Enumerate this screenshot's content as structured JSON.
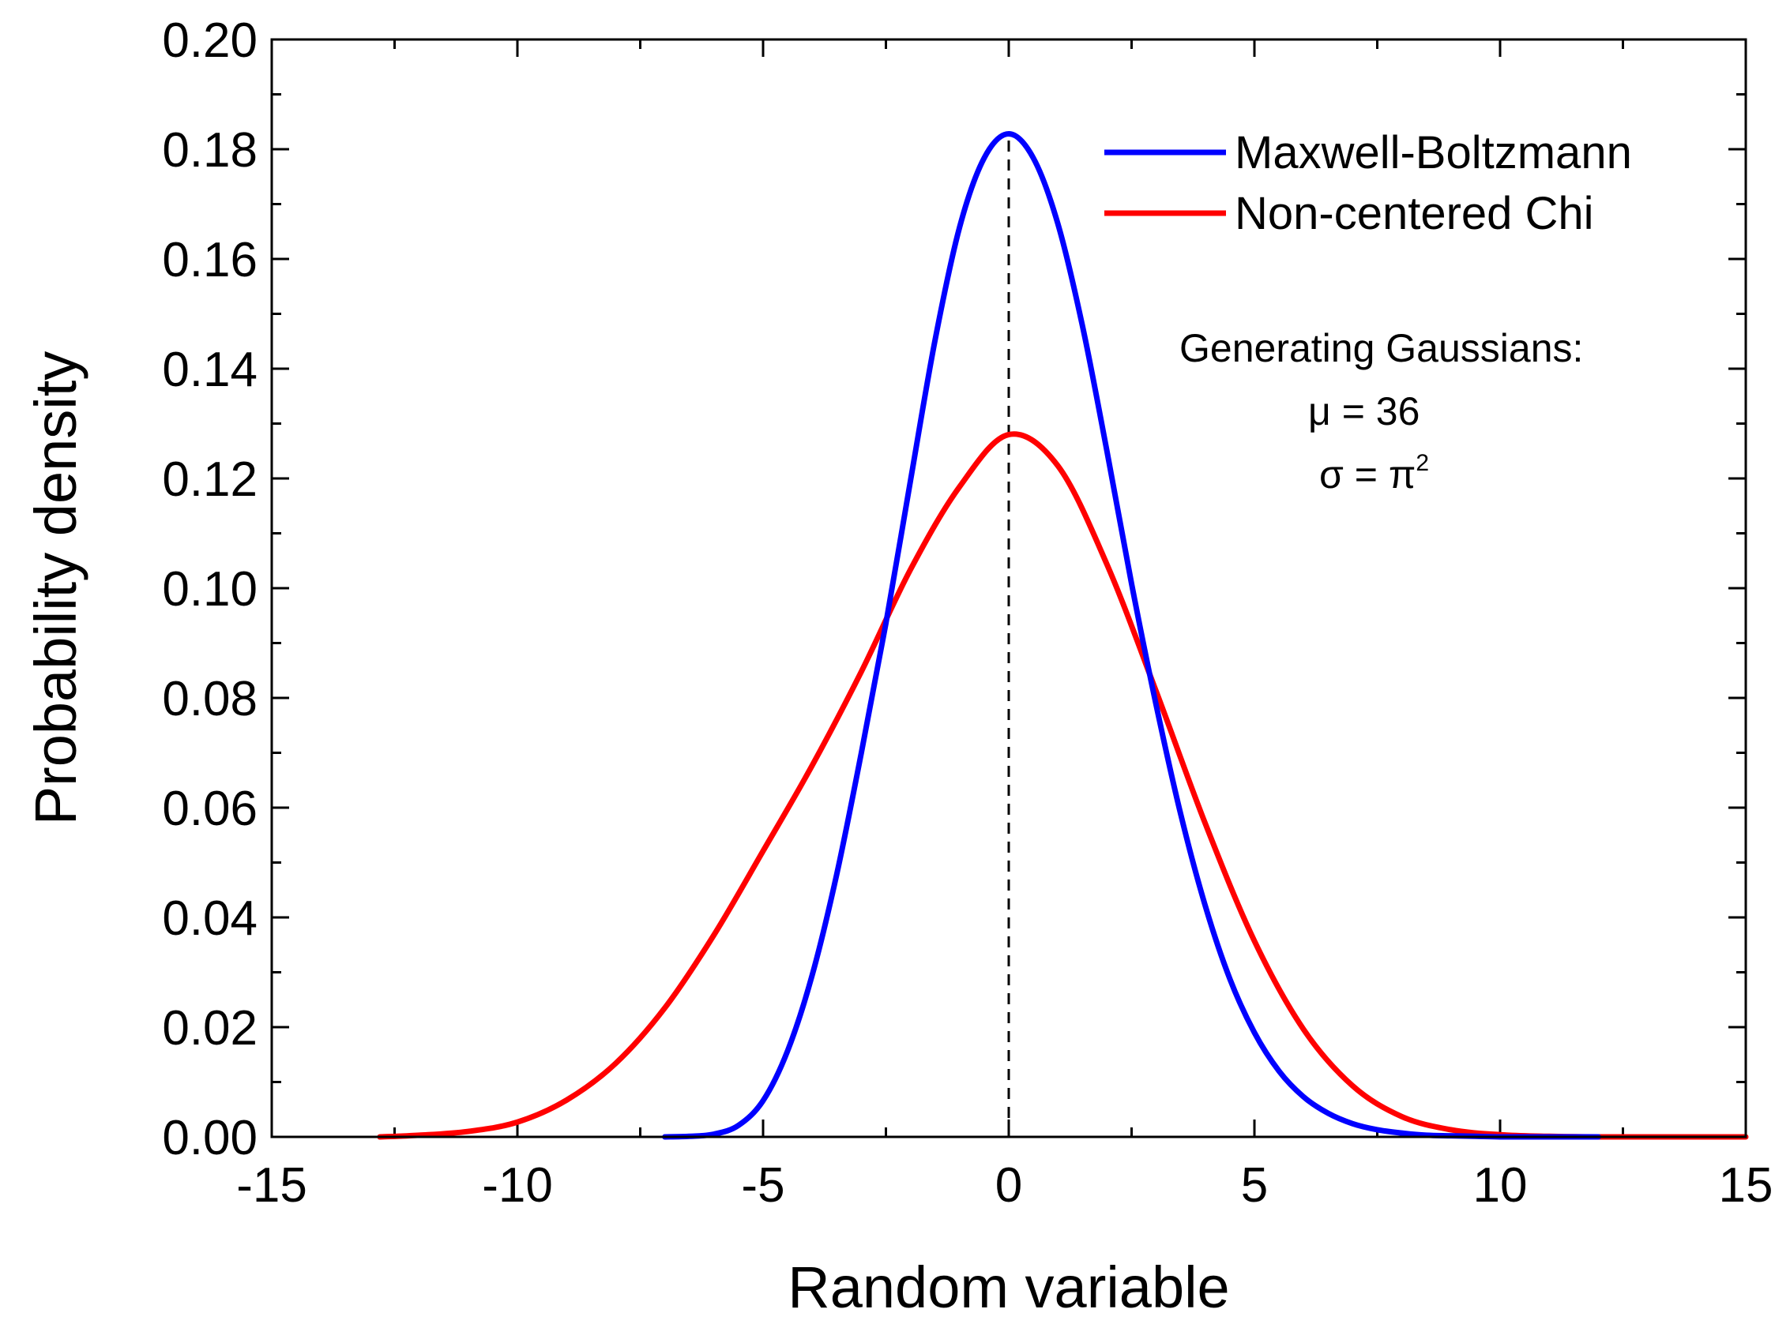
{
  "chart_data": {
    "type": "line",
    "title": "",
    "xlabel": "Random variable",
    "ylabel": "Probability density",
    "xlim": [
      -15,
      15
    ],
    "ylim": [
      0,
      0.2
    ],
    "x_ticks": [
      -15,
      -10,
      -5,
      0,
      5,
      10,
      15
    ],
    "x_tick_labels": [
      "-15",
      "-10",
      "-5",
      "0",
      "5",
      "10",
      "15"
    ],
    "y_ticks": [
      0,
      0.02,
      0.04,
      0.06,
      0.08,
      0.1,
      0.12,
      0.14,
      0.16,
      0.18,
      0.2
    ],
    "y_tick_labels": [
      "0.00",
      "0.02",
      "0.04",
      "0.06",
      "0.08",
      "0.10",
      "0.12",
      "0.14",
      "0.16",
      "0.18",
      "0.20"
    ],
    "grid": false,
    "legend_position": "top-right",
    "series": [
      {
        "name": "Maxwell-Boltzmann",
        "color": "#0000ff",
        "x": [
          -7,
          -6.5,
          -6,
          -5.5,
          -5,
          -4.5,
          -4,
          -3.5,
          -3,
          -2.5,
          -2,
          -1.5,
          -1,
          -0.5,
          0,
          0.5,
          1,
          1.5,
          2,
          2.5,
          3,
          3.5,
          4,
          4.5,
          5,
          5.5,
          6,
          6.5,
          7,
          7.5,
          8,
          8.5,
          9,
          9.5,
          10,
          10.5,
          11,
          11.5,
          12
        ],
        "y": [
          0,
          0.0001,
          0.0005,
          0.0021,
          0.0066,
          0.0157,
          0.0295,
          0.0479,
          0.07,
          0.0936,
          0.1196,
          0.1452,
          0.1658,
          0.1784,
          0.1828,
          0.1784,
          0.1664,
          0.1478,
          0.1249,
          0.1008,
          0.0787,
          0.0588,
          0.0421,
          0.0288,
          0.019,
          0.012,
          0.0073,
          0.0043,
          0.0024,
          0.0013,
          0.0007,
          0.0003,
          0.0002,
          0.0001,
          0,
          0,
          0,
          0,
          0
        ]
      },
      {
        "name": "Non-centered Chi",
        "color": "#ff0000",
        "x": [
          -12.8,
          -12,
          -11,
          -10,
          -9,
          -8,
          -7,
          -6,
          -5,
          -4,
          -3,
          -2,
          -1,
          0,
          1,
          2,
          3,
          4,
          5,
          6,
          7,
          8,
          9,
          10,
          11,
          12,
          13,
          14,
          15
        ],
        "y": [
          0,
          0.0003,
          0.001,
          0.0027,
          0.0067,
          0.0134,
          0.0235,
          0.0368,
          0.0521,
          0.0677,
          0.0848,
          0.1034,
          0.1185,
          0.128,
          0.1223,
          0.1043,
          0.0812,
          0.0571,
          0.0357,
          0.0196,
          0.0093,
          0.0037,
          0.0013,
          0.0004,
          0.0001,
          0,
          0,
          0,
          0
        ]
      }
    ],
    "reference_line": {
      "x": 0,
      "style": "dashed",
      "color": "#000000"
    },
    "annotation": {
      "title": "Generating Gaussians:",
      "mu_line": "μ = 36",
      "sigma_prefix": "σ = π",
      "sigma_exponent": "2"
    }
  }
}
